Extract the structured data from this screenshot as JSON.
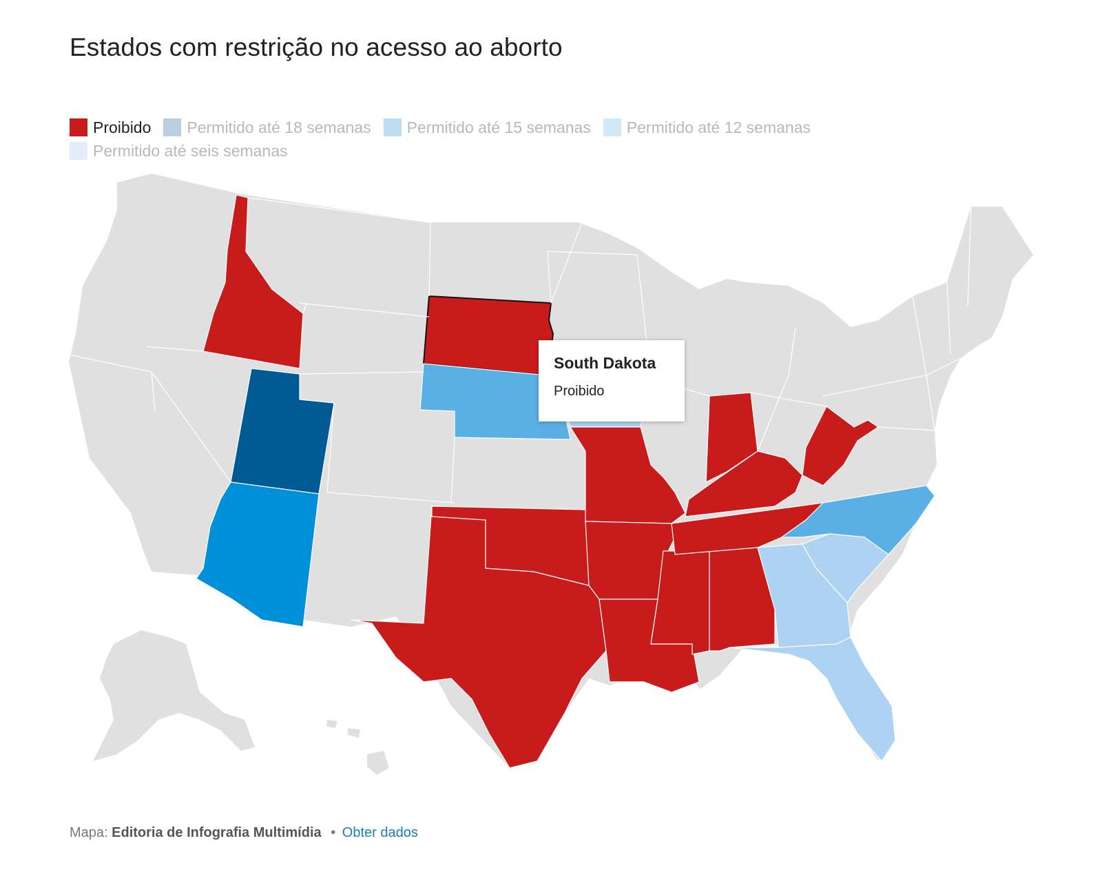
{
  "title": "Estados com restrição no acesso ao aborto",
  "legend": [
    {
      "label": "Proibido",
      "color": "#c81b1b",
      "active": true
    },
    {
      "label": "Permitido até 18 semanas",
      "color": "#b8cfe0",
      "active": false
    },
    {
      "label": "Permitido até 15 semanas",
      "color": "#bcddf2",
      "active": false
    },
    {
      "label": "Permitido até 12 semanas",
      "color": "#d2e8f6",
      "active": false
    },
    {
      "label": "Permitido até seis semanas",
      "color": "#e4eefa",
      "active": false
    }
  ],
  "map": {
    "default_color": "#e0e0e0",
    "categories": {
      "proibido": "#c81b1b",
      "ate_18_semanas": "#005b94",
      "ate_15_semanas": "#0090d9",
      "ate_12_semanas": "#5ab0e4",
      "ate_seis_semanas": "#aed2f2"
    },
    "states": {
      "Idaho": "proibido",
      "South Dakota": "proibido",
      "Texas": "proibido",
      "Oklahoma": "proibido",
      "Missouri": "proibido",
      "Arkansas": "proibido",
      "Louisiana": "proibido",
      "Mississippi": "proibido",
      "Alabama": "proibido",
      "Tennessee": "proibido",
      "Kentucky": "proibido",
      "Indiana": "proibido",
      "West Virginia": "proibido",
      "Utah": "ate_18_semanas",
      "Arizona": "ate_15_semanas",
      "Nebraska": "ate_12_semanas",
      "North Carolina": "ate_12_semanas",
      "Iowa": "ate_seis_semanas",
      "Georgia": "ate_seis_semanas",
      "South Carolina": "ate_seis_semanas",
      "Florida": "ate_seis_semanas"
    },
    "selected_state": "South Dakota"
  },
  "tooltip": {
    "title": "South Dakota",
    "status": "Proibido"
  },
  "footer": {
    "prefix": "Mapa:",
    "source": "Editoria de Infografia Multimídia",
    "separator": "•",
    "link": "Obter dados"
  }
}
